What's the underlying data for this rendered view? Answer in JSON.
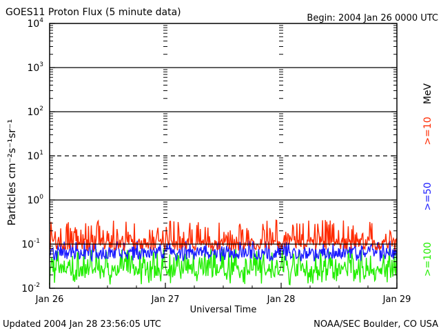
{
  "chart_data": {
    "type": "line",
    "title": "GOES11 Proton Flux (5 minute data)",
    "begin_label": "Begin: 2004 Jan 26 0000 UTC",
    "ylabel": "Particles cm⁻²s⁻¹sr⁻¹",
    "xlabel": "Universal Time",
    "y_scale": "log",
    "ylim": [
      0.01,
      10000
    ],
    "y_ticks": [
      {
        "base": "10",
        "exp": "4"
      },
      {
        "base": "10",
        "exp": "3"
      },
      {
        "base": "10",
        "exp": "2"
      },
      {
        "base": "10",
        "exp": "1"
      },
      {
        "base": "10",
        "exp": "0"
      },
      {
        "base": "10",
        "exp": "-1"
      },
      {
        "base": "10",
        "exp": "-2"
      }
    ],
    "x_range_days": [
      0,
      3
    ],
    "x_ticks": [
      "Jan 26",
      "Jan 27",
      "Jan 28",
      "Jan 29"
    ],
    "reference_lines": [
      {
        "value": 1000,
        "style": "solid"
      },
      {
        "value": 100,
        "style": "solid"
      },
      {
        "value": 10,
        "style": "dashed"
      },
      {
        "value": 1,
        "style": "solid"
      },
      {
        "value": 0.1,
        "style": "solid"
      }
    ],
    "series": [
      {
        "name": ">=10 MeV",
        "color": "#ff2a00",
        "baseline": 0.1,
        "peak_max": 0.35,
        "floor": 0.07
      },
      {
        "name": ">=50",
        "color": "#1a1aff",
        "baseline": 0.06,
        "peak_max": 0.12,
        "floor": 0.04
      },
      {
        "name": ">=100",
        "color": "#22ee00",
        "baseline": 0.025,
        "peak_max": 0.08,
        "floor": 0.012
      }
    ],
    "legend": {
      "label_ge10": ">=10",
      "unit": "MeV",
      "label_ge50": ">=50",
      "label_ge100": ">=100"
    }
  },
  "footer": {
    "updated": "Updated 2004 Jan 28 23:56:05 UTC",
    "source": "NOAA/SEC Boulder, CO USA"
  }
}
